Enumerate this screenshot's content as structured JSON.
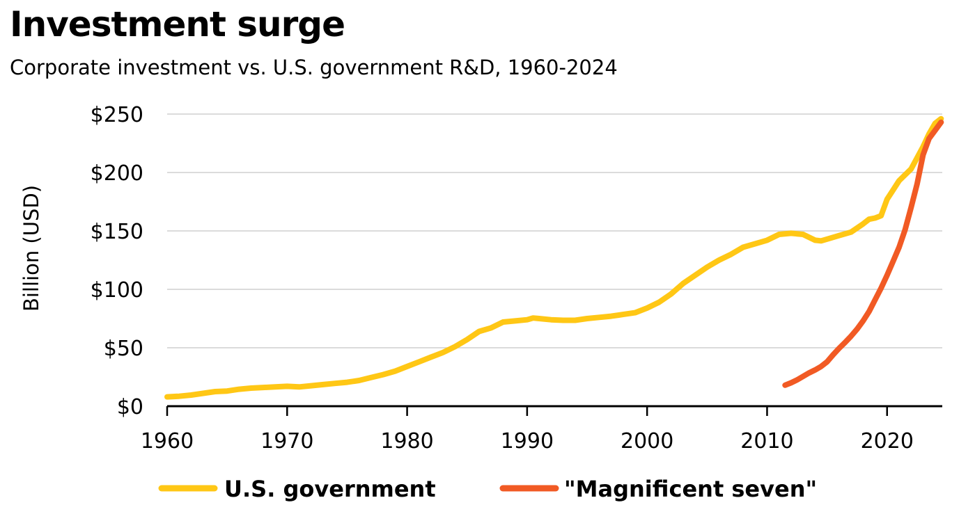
{
  "chart_data": {
    "type": "line",
    "title": "Investment surge",
    "subtitle": "Corporate investment vs. U.S. government R&D, 1960-2024",
    "ylabel": "Billion (USD)",
    "xlabel": "",
    "xlim": [
      1960,
      2024.6
    ],
    "ylim": [
      0,
      250
    ],
    "grid": true,
    "legend_position": "bottom",
    "x_ticks": [
      1960,
      1970,
      1980,
      1990,
      2000,
      2010,
      2020
    ],
    "x_tick_labels": [
      "1960",
      "1970",
      "1980",
      "1990",
      "2000",
      "2010",
      "2020"
    ],
    "y_ticks": [
      0,
      50,
      100,
      150,
      200,
      250
    ],
    "y_tick_labels": [
      "$0",
      "$50",
      "$100",
      "$150",
      "$200",
      "$250"
    ],
    "series": [
      {
        "name": "U.S. government",
        "color": "#FFC715",
        "points": [
          [
            1960,
            8
          ],
          [
            1961,
            8.5
          ],
          [
            1962,
            9.5
          ],
          [
            1963,
            11
          ],
          [
            1964,
            12.5
          ],
          [
            1965,
            13
          ],
          [
            1966,
            14.5
          ],
          [
            1967,
            15.5
          ],
          [
            1968,
            16
          ],
          [
            1969,
            16.5
          ],
          [
            1970,
            17
          ],
          [
            1971,
            16.5
          ],
          [
            1972,
            17.5
          ],
          [
            1973,
            18.5
          ],
          [
            1974,
            19.5
          ],
          [
            1975,
            20.5
          ],
          [
            1976,
            22
          ],
          [
            1977,
            24.5
          ],
          [
            1978,
            27
          ],
          [
            1979,
            30
          ],
          [
            1980,
            34
          ],
          [
            1981,
            38
          ],
          [
            1982,
            42
          ],
          [
            1983,
            46
          ],
          [
            1984,
            51
          ],
          [
            1985,
            57
          ],
          [
            1986,
            64
          ],
          [
            1987,
            67
          ],
          [
            1988,
            72
          ],
          [
            1989,
            73
          ],
          [
            1990,
            74
          ],
          [
            1990.5,
            75.5
          ],
          [
            1991,
            75
          ],
          [
            1992,
            74
          ],
          [
            1993,
            73.5
          ],
          [
            1994,
            73.5
          ],
          [
            1995,
            75
          ],
          [
            1996,
            76
          ],
          [
            1997,
            77
          ],
          [
            1998,
            78.5
          ],
          [
            1999,
            80
          ],
          [
            2000,
            84
          ],
          [
            2001,
            89
          ],
          [
            2002,
            96
          ],
          [
            2003,
            105
          ],
          [
            2004,
            112
          ],
          [
            2005,
            119
          ],
          [
            2006,
            125
          ],
          [
            2007,
            130
          ],
          [
            2008,
            136
          ],
          [
            2009,
            139
          ],
          [
            2010,
            142
          ],
          [
            2011,
            147
          ],
          [
            2012,
            148
          ],
          [
            2013,
            147
          ],
          [
            2014,
            142
          ],
          [
            2014.5,
            141.5
          ],
          [
            2015,
            143
          ],
          [
            2016,
            146
          ],
          [
            2017,
            149
          ],
          [
            2018,
            156
          ],
          [
            2018.5,
            160
          ],
          [
            2019,
            161
          ],
          [
            2019.5,
            163
          ],
          [
            2020,
            177
          ],
          [
            2020.5,
            185
          ],
          [
            2021,
            193
          ],
          [
            2022,
            203
          ],
          [
            2023,
            222
          ],
          [
            2023.5,
            233
          ],
          [
            2024,
            242
          ],
          [
            2024.5,
            246
          ]
        ]
      },
      {
        "name": "\"Magnificent seven\"",
        "color": "#F15A24",
        "points": [
          [
            2011.5,
            18
          ],
          [
            2012,
            20
          ],
          [
            2012.5,
            22.5
          ],
          [
            2013,
            25.5
          ],
          [
            2013.5,
            28.5
          ],
          [
            2014,
            31
          ],
          [
            2014.5,
            34
          ],
          [
            2015,
            38
          ],
          [
            2015.5,
            44
          ],
          [
            2016,
            49.5
          ],
          [
            2016.5,
            54.5
          ],
          [
            2017,
            60
          ],
          [
            2017.5,
            66
          ],
          [
            2018,
            73
          ],
          [
            2018.5,
            81
          ],
          [
            2019,
            91
          ],
          [
            2019.5,
            101
          ],
          [
            2020,
            112
          ],
          [
            2020.5,
            124
          ],
          [
            2021,
            136
          ],
          [
            2021.5,
            151
          ],
          [
            2022,
            170
          ],
          [
            2022.5,
            190
          ],
          [
            2023,
            215
          ],
          [
            2023.5,
            229
          ],
          [
            2024,
            236
          ],
          [
            2024.5,
            243
          ]
        ]
      }
    ]
  }
}
